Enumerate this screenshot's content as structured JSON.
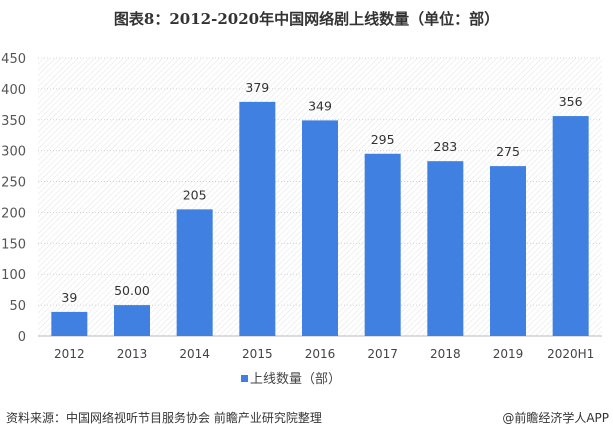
{
  "chart_data": {
    "type": "bar",
    "title": "图表8：2012-2020年中国网络剧上线数量（单位：部）",
    "categories": [
      "2012",
      "2013",
      "2014",
      "2015",
      "2016",
      "2017",
      "2018",
      "2019",
      "2020H1"
    ],
    "series": [
      {
        "name": "上线数量（部）",
        "values": [
          39,
          50,
          205,
          379,
          349,
          295,
          283,
          275,
          356
        ],
        "labels": [
          "39",
          "50.00",
          "205",
          "379",
          "349",
          "295",
          "283",
          "275",
          "356"
        ]
      }
    ],
    "yticks": [
      0,
      50,
      100,
      150,
      200,
      250,
      300,
      350,
      400,
      450
    ],
    "ylim": [
      0,
      450
    ],
    "grid": true,
    "legend": "bottom",
    "colors": {
      "bar": "#3f80e0",
      "grid": "#cccccc"
    }
  },
  "footer": {
    "source": "资料来源：中国网络视听节目服务协会 前瞻产业研究院整理",
    "credit": "@前瞻经济学人APP"
  }
}
